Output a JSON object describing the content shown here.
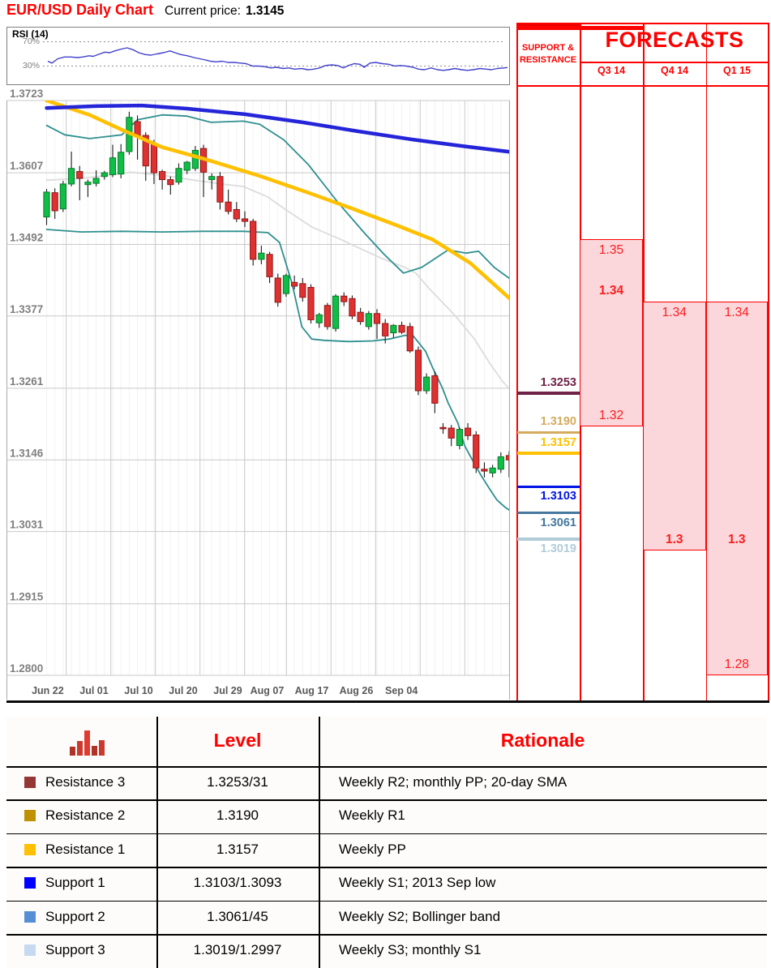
{
  "header": {
    "title": "EUR/USD Daily Chart",
    "price_label": "Current price:",
    "price_value": "1.3145"
  },
  "rsi_panel": {
    "label": "RSI (14)",
    "upper_label": "70%",
    "lower_label": "30%"
  },
  "forecasts": {
    "title": "FORECASTS",
    "sr_header_line1": "SUPPORT &",
    "sr_header_line2": "RESISTANCE",
    "quarters": [
      "Q3 14",
      "Q4 14",
      "Q1 15"
    ]
  },
  "levels_table": {
    "columns": [
      "Level",
      "Rationale"
    ],
    "icon": "bar-chart-icon",
    "icon_bar_heights": [
      11,
      18,
      31,
      12,
      19
    ],
    "icon_bar_colors": [
      "#b03328",
      "#ca3a2e",
      "#df3b30",
      "#b03328",
      "#ca3a2e"
    ],
    "rows": [
      {
        "label": "Resistance 3",
        "marker_color": "#953735",
        "level": "1.3253/31",
        "rationale": "Weekly R2; monthly PP; 20-day SMA"
      },
      {
        "label": "Resistance 2",
        "marker_color": "#bf9000",
        "level": "1.3190",
        "rationale": "Weekly R1"
      },
      {
        "label": "Resistance 1",
        "marker_color": "#ffc000",
        "level": "1.3157",
        "rationale": "Weekly PP"
      },
      {
        "label": "Support 1",
        "marker_color": "#0000ff",
        "level": "1.3103/1.3093",
        "rationale": "Weekly S1; 2013 Sep low"
      },
      {
        "label": "Support 2",
        "marker_color": "#558ed5",
        "level": "1.3061/45",
        "rationale": "Weekly S2; Bollinger band"
      },
      {
        "label": "Support 3",
        "marker_color": "#c5d9f1",
        "level": "1.3019/1.2997",
        "rationale": "Weekly S3; monthly S1"
      }
    ]
  },
  "chart_data": {
    "type": "candlestick",
    "title": "EUR/USD Daily Chart",
    "current_price": 1.3145,
    "y_axis": {
      "ticks": [
        1.3723,
        1.3607,
        1.3492,
        1.3377,
        1.3261,
        1.3146,
        1.3031,
        1.2915,
        1.28
      ],
      "range": [
        1.2755,
        1.3723
      ]
    },
    "x_axis": {
      "tick_labels": [
        "Jun 22",
        "Jul 01",
        "Jul 10",
        "Jul 20",
        "Jul 29",
        "Aug 07",
        "Aug 17",
        "Aug 26",
        "Sep 04"
      ]
    },
    "candles_ohlc": [
      [
        1.3536,
        1.3581,
        1.3523,
        1.3576
      ],
      [
        1.3575,
        1.3582,
        1.3533,
        1.3546
      ],
      [
        1.3549,
        1.3594,
        1.3544,
        1.3589
      ],
      [
        1.3589,
        1.3641,
        1.3585,
        1.3614
      ],
      [
        1.3609,
        1.3618,
        1.3563,
        1.3598
      ],
      [
        1.3588,
        1.3596,
        1.3568,
        1.3592
      ],
      [
        1.359,
        1.3611,
        1.3585,
        1.3598
      ],
      [
        1.3601,
        1.361,
        1.3596,
        1.3607
      ],
      [
        1.3604,
        1.3652,
        1.36,
        1.3631
      ],
      [
        1.3605,
        1.3653,
        1.3598,
        1.364
      ],
      [
        1.3641,
        1.3705,
        1.3636,
        1.3696
      ],
      [
        1.3689,
        1.3699,
        1.3628,
        1.3666
      ],
      [
        1.3667,
        1.3672,
        1.3594,
        1.3618
      ],
      [
        1.3654,
        1.366,
        1.3589,
        1.3607
      ],
      [
        1.3609,
        1.3612,
        1.358,
        1.3596
      ],
      [
        1.3596,
        1.3601,
        1.3572,
        1.3588
      ],
      [
        1.3592,
        1.3622,
        1.3588,
        1.3614
      ],
      [
        1.3611,
        1.3626,
        1.3605,
        1.3624
      ],
      [
        1.3614,
        1.365,
        1.361,
        1.3643
      ],
      [
        1.3646,
        1.3652,
        1.3568,
        1.3608
      ],
      [
        1.3596,
        1.3606,
        1.358,
        1.3601
      ],
      [
        1.3601,
        1.3608,
        1.3548,
        1.356
      ],
      [
        1.356,
        1.358,
        1.354,
        1.3545
      ],
      [
        1.3548,
        1.356,
        1.3528,
        1.3533
      ],
      [
        1.3533,
        1.3545,
        1.352,
        1.3529
      ],
      [
        1.3529,
        1.3533,
        1.3458,
        1.3468
      ],
      [
        1.3468,
        1.349,
        1.346,
        1.3478
      ],
      [
        1.3476,
        1.348,
        1.343,
        1.344
      ],
      [
        1.3438,
        1.3445,
        1.3392,
        1.3399
      ],
      [
        1.3413,
        1.3445,
        1.3408,
        1.3442
      ],
      [
        1.3431,
        1.3442,
        1.342,
        1.3425
      ],
      [
        1.3429,
        1.3438,
        1.34,
        1.3407
      ],
      [
        1.3423,
        1.3428,
        1.3365,
        1.3371
      ],
      [
        1.3366,
        1.3382,
        1.3358,
        1.3379
      ],
      [
        1.3394,
        1.3398,
        1.3355,
        1.336
      ],
      [
        1.3357,
        1.3412,
        1.3352,
        1.3409
      ],
      [
        1.3409,
        1.3415,
        1.3393,
        1.34
      ],
      [
        1.3405,
        1.341,
        1.3372,
        1.3377
      ],
      [
        1.3383,
        1.339,
        1.3363,
        1.3368
      ],
      [
        1.336,
        1.3385,
        1.3355,
        1.3381
      ],
      [
        1.3381,
        1.3388,
        1.334,
        1.3365
      ],
      [
        1.3365,
        1.3372,
        1.3333,
        1.3345
      ],
      [
        1.335,
        1.3364,
        1.3342,
        1.3362
      ],
      [
        1.3362,
        1.3368,
        1.3348,
        1.3351
      ],
      [
        1.336,
        1.3366,
        1.3318,
        1.3321
      ],
      [
        1.3322,
        1.3328,
        1.325,
        1.3257
      ],
      [
        1.3257,
        1.3285,
        1.3252,
        1.3279
      ],
      [
        1.3281,
        1.3288,
        1.3221,
        1.3237
      ],
      [
        1.3198,
        1.3205,
        1.3188,
        1.3196
      ],
      [
        1.3197,
        1.3202,
        1.3168,
        1.3181
      ],
      [
        1.3169,
        1.3198,
        1.3163,
        1.3195
      ],
      [
        1.3197,
        1.3205,
        1.3178,
        1.3185
      ],
      [
        1.3186,
        1.3192,
        1.3125,
        1.3133
      ],
      [
        1.3131,
        1.3142,
        1.3118,
        1.3128
      ],
      [
        1.3125,
        1.3138,
        1.3118,
        1.3133
      ],
      [
        1.3131,
        1.3158,
        1.3125,
        1.3151
      ],
      [
        1.3153,
        1.316,
        1.3118,
        1.3146
      ]
    ],
    "overlays": {
      "sma_long_blue": [
        [
          0,
          1.3711
        ],
        [
          6,
          1.3714
        ],
        [
          11.5,
          1.3715
        ],
        [
          17,
          1.371
        ],
        [
          24,
          1.3701
        ],
        [
          31,
          1.3688
        ],
        [
          37.5,
          1.3674
        ],
        [
          44.5,
          1.366
        ],
        [
          50.3,
          1.365
        ],
        [
          56.5,
          1.364
        ]
      ],
      "sma_mid_yellow": [
        [
          0,
          1.3723
        ],
        [
          5.2,
          1.37
        ],
        [
          9.1,
          1.3676
        ],
        [
          14,
          1.3648
        ],
        [
          18.9,
          1.363
        ],
        [
          25.8,
          1.3602
        ],
        [
          31.7,
          1.3575
        ],
        [
          36.9,
          1.355
        ],
        [
          42.5,
          1.3522
        ],
        [
          46.7,
          1.35
        ],
        [
          51.3,
          1.3462
        ],
        [
          56.5,
          1.34
        ]
      ],
      "bollinger_upper": [
        [
          0,
          1.3683
        ],
        [
          2.2,
          1.3668
        ],
        [
          5.2,
          1.3662
        ],
        [
          9.1,
          1.3668
        ],
        [
          11,
          1.3692
        ],
        [
          14,
          1.37
        ],
        [
          17,
          1.3698
        ],
        [
          19.9,
          1.3688
        ],
        [
          23.8,
          1.369
        ],
        [
          25.8,
          1.3685
        ],
        [
          28.7,
          1.366
        ],
        [
          31.7,
          1.362
        ],
        [
          35.3,
          1.3559
        ],
        [
          38.5,
          1.351
        ],
        [
          40.8,
          1.3477
        ],
        [
          43.2,
          1.3446
        ],
        [
          45.4,
          1.3455
        ],
        [
          48.6,
          1.3483
        ],
        [
          50.8,
          1.3478
        ],
        [
          52.3,
          1.3481
        ],
        [
          54.2,
          1.3455
        ],
        [
          56.5,
          1.3433
        ]
      ],
      "bollinger_lower": [
        [
          0,
          1.3516
        ],
        [
          4.2,
          1.3512
        ],
        [
          9.1,
          1.3513
        ],
        [
          14,
          1.3512
        ],
        [
          18.9,
          1.3513
        ],
        [
          23.8,
          1.3513
        ],
        [
          26.8,
          1.3511
        ],
        [
          28.2,
          1.3495
        ],
        [
          29.7,
          1.343
        ],
        [
          30.9,
          1.336
        ],
        [
          32.1,
          1.334
        ],
        [
          33.6,
          1.3338
        ],
        [
          36.6,
          1.3336
        ],
        [
          39.5,
          1.3337
        ],
        [
          41.5,
          1.334
        ],
        [
          43.4,
          1.3346
        ],
        [
          44.4,
          1.3345
        ],
        [
          45.9,
          1.332
        ],
        [
          46.7,
          1.3295
        ],
        [
          47.9,
          1.3262
        ],
        [
          48.6,
          1.3238
        ],
        [
          49.8,
          1.3205
        ],
        [
          50.6,
          1.3169
        ],
        [
          51.8,
          1.314
        ],
        [
          52.6,
          1.3121
        ],
        [
          53.7,
          1.3098
        ],
        [
          54.5,
          1.3082
        ],
        [
          55.5,
          1.307
        ],
        [
          56.5,
          1.3061
        ]
      ],
      "sma_20_gray": [
        [
          0,
          1.3595
        ],
        [
          4.2,
          1.3598
        ],
        [
          8.1,
          1.3604
        ],
        [
          10.1,
          1.3608
        ],
        [
          14,
          1.3603
        ],
        [
          17.9,
          1.3595
        ],
        [
          21.8,
          1.3588
        ],
        [
          23.8,
          1.3585
        ],
        [
          26.8,
          1.3568
        ],
        [
          28.7,
          1.355
        ],
        [
          32.1,
          1.352
        ],
        [
          35.6,
          1.35
        ],
        [
          38.5,
          1.3482
        ],
        [
          40.5,
          1.347
        ],
        [
          43.4,
          1.3455
        ],
        [
          44.7,
          1.3446
        ],
        [
          46.4,
          1.342
        ],
        [
          49.3,
          1.338
        ],
        [
          51.8,
          1.334
        ],
        [
          53.7,
          1.33
        ],
        [
          55.2,
          1.3272
        ],
        [
          56.5,
          1.3253
        ]
      ]
    },
    "rsi": {
      "label": "RSI (14)",
      "levels": [
        70,
        30
      ],
      "points": [
        [
          0,
          38
        ],
        [
          0.5,
          35
        ],
        [
          1.2,
          42
        ],
        [
          2,
          45
        ],
        [
          2.8,
          45
        ],
        [
          3.6,
          44
        ],
        [
          4.2,
          45
        ],
        [
          5,
          47
        ],
        [
          5.5,
          46
        ],
        [
          6.3,
          50
        ],
        [
          6.9,
          53
        ],
        [
          7.5,
          52
        ],
        [
          8.1,
          55
        ],
        [
          8.9,
          58
        ],
        [
          9.6,
          60
        ],
        [
          10.3,
          57
        ],
        [
          11,
          52
        ],
        [
          11.8,
          49
        ],
        [
          12.5,
          48
        ],
        [
          13.2,
          50
        ],
        [
          14,
          52
        ],
        [
          14.8,
          55
        ],
        [
          15.4,
          52
        ],
        [
          16.1,
          49
        ],
        [
          16.9,
          47
        ],
        [
          17.7,
          44
        ],
        [
          18.4,
          42
        ],
        [
          19.1,
          40
        ],
        [
          19.7,
          38
        ],
        [
          20.4,
          37
        ],
        [
          21.1,
          38
        ],
        [
          21.8,
          36
        ],
        [
          22.6,
          36
        ],
        [
          23.3,
          35
        ],
        [
          24,
          34
        ],
        [
          24.8,
          30
        ],
        [
          25.6,
          30
        ],
        [
          26.3,
          29
        ],
        [
          27,
          27
        ],
        [
          27.7,
          28
        ],
        [
          28.5,
          26
        ],
        [
          29.2,
          27
        ],
        [
          29.9,
          25
        ],
        [
          30.7,
          26
        ],
        [
          31.5,
          24
        ],
        [
          32.2,
          25
        ],
        [
          32.9,
          27
        ],
        [
          33.6,
          31
        ],
        [
          34.4,
          32
        ],
        [
          35.1,
          31
        ],
        [
          35.8,
          27
        ],
        [
          36.4,
          31
        ],
        [
          37.1,
          34
        ],
        [
          37.8,
          33
        ],
        [
          38.3,
          28
        ],
        [
          39,
          35
        ],
        [
          39.7,
          36
        ],
        [
          40.5,
          34
        ],
        [
          41.3,
          33
        ],
        [
          42,
          30
        ],
        [
          42.7,
          31
        ],
        [
          43.4,
          30
        ],
        [
          44.2,
          28
        ],
        [
          44.9,
          25
        ],
        [
          45.6,
          24
        ],
        [
          46.4,
          27
        ],
        [
          47.2,
          24
        ],
        [
          47.9,
          23
        ],
        [
          48.5,
          24
        ],
        [
          49.3,
          26
        ],
        [
          50.1,
          24
        ],
        [
          50.8,
          23
        ],
        [
          51.5,
          24
        ],
        [
          52.3,
          26
        ],
        [
          53.1,
          25
        ],
        [
          53.7,
          24
        ],
        [
          54.4,
          26
        ],
        [
          55.2,
          27
        ],
        [
          56,
          28
        ]
      ]
    },
    "support_resistance": [
      {
        "role": "R3",
        "value": "1.3253",
        "price": 1.3253,
        "color": "#6e2247",
        "label_pos": "above"
      },
      {
        "role": "R2",
        "value": "1.3190",
        "price": 1.319,
        "color": "#d4ab5e",
        "label_pos": "above"
      },
      {
        "role": "R1",
        "value": "1.3157",
        "price": 1.3157,
        "color": "#ffc000",
        "label_pos": "above"
      },
      {
        "role": "S1",
        "value": "1.3103",
        "price": 1.3103,
        "color": "#0014e6",
        "label_pos": "below"
      },
      {
        "role": "S2",
        "value": "1.3061",
        "price": 1.3061,
        "color": "#44789e",
        "label_pos": "below"
      },
      {
        "role": "S3",
        "value": "1.3019",
        "price": 1.3019,
        "color": "#b0ccd8",
        "label_pos": "below"
      }
    ],
    "forecast_boxes": [
      {
        "quarter": "Q3 14",
        "col": 0,
        "range_top": 1.35,
        "range_bottom": 1.32,
        "bold_inner_line": 1.34,
        "labels": [
          {
            "text": "1.35",
            "price": 1.35,
            "bold": false,
            "placement": "below-top-edge"
          },
          {
            "text": "1.34",
            "price": 1.34,
            "bold": true,
            "placement": "above-line"
          },
          {
            "text": "1.32",
            "price": 1.32,
            "bold": false,
            "placement": "above-line"
          }
        ]
      },
      {
        "quarter": "Q4 14",
        "col": 1,
        "range_top": 1.34,
        "range_bottom": 1.3,
        "thick_line": 1.3,
        "labels": [
          {
            "text": "1.34",
            "price": 1.34,
            "bold": false,
            "placement": "below-top-edge"
          },
          {
            "text": "1.3",
            "price": 1.3,
            "bold": true,
            "placement": "above-line"
          }
        ]
      },
      {
        "quarter": "Q1 15",
        "col": 2,
        "range_top": 1.34,
        "range_bottom": 1.28,
        "thick_line": 1.3,
        "labels": [
          {
            "text": "1.34",
            "price": 1.34,
            "bold": false,
            "placement": "below-top-edge"
          },
          {
            "text": "1.3",
            "price": 1.3,
            "bold": true,
            "placement": "above-line"
          },
          {
            "text": "1.28",
            "price": 1.28,
            "bold": false,
            "placement": "above-line"
          }
        ]
      }
    ],
    "colors": {
      "accent_red": "#fe0000",
      "pink_fill": "#fbd6db",
      "candle_up": "#0fbe46",
      "candle_up_stroke": "#0a7a2b",
      "candle_down": "#e03131",
      "candle_down_stroke": "#8f1818",
      "sma_long_blue": "#2424d9",
      "sma_mid_yellow": "#ffc000",
      "bollinger_teal": "#2f8f8f",
      "sma_20_gray": "#dcdcdc",
      "rsi_line": "#4040cc",
      "grid": "#c9c9c9",
      "y_label": "#7f7f7f",
      "x_label": "#595959"
    },
    "legend_position": "none",
    "grid": true
  }
}
